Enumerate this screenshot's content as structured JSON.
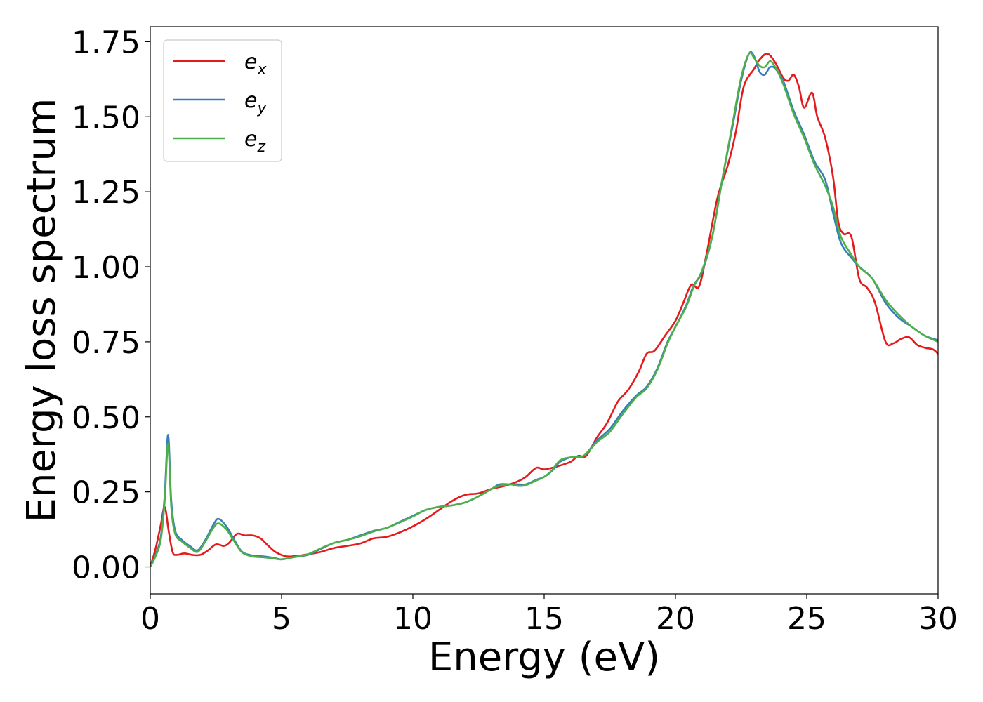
{
  "chart_data": {
    "type": "line",
    "xlabel": "Energy (eV)",
    "ylabel": "Energy loss spectrum",
    "xlim": [
      0,
      30
    ],
    "ylim": [
      -0.09,
      1.8
    ],
    "xticks": [
      0,
      5,
      10,
      15,
      20,
      25,
      30
    ],
    "xtick_labels": [
      "0",
      "5",
      "10",
      "15",
      "20",
      "25",
      "30"
    ],
    "yticks": [
      0,
      0.25,
      0.5,
      0.75,
      1.0,
      1.25,
      1.5,
      1.75
    ],
    "ytick_labels": [
      "0.00",
      "0.25",
      "0.50",
      "0.75",
      "1.00",
      "1.25",
      "1.50",
      "1.75"
    ],
    "grid": false,
    "legend": "top-left",
    "series": [
      {
        "name": "e_x",
        "base": "e",
        "sub": "x",
        "color": "#e41a1c",
        "points": [
          [
            0,
            0
          ],
          [
            0.2,
            0.06
          ],
          [
            0.4,
            0.14
          ],
          [
            0.55,
            0.2
          ],
          [
            0.7,
            0.12
          ],
          [
            0.85,
            0.05
          ],
          [
            1.0,
            0.04
          ],
          [
            1.3,
            0.045
          ],
          [
            1.6,
            0.04
          ],
          [
            1.9,
            0.04
          ],
          [
            2.2,
            0.055
          ],
          [
            2.5,
            0.075
          ],
          [
            2.8,
            0.07
          ],
          [
            3.0,
            0.08
          ],
          [
            3.3,
            0.11
          ],
          [
            3.6,
            0.105
          ],
          [
            3.9,
            0.105
          ],
          [
            4.2,
            0.095
          ],
          [
            4.5,
            0.07
          ],
          [
            4.8,
            0.048
          ],
          [
            5.2,
            0.035
          ],
          [
            5.6,
            0.037
          ],
          [
            6.0,
            0.042
          ],
          [
            6.5,
            0.05
          ],
          [
            7.0,
            0.063
          ],
          [
            7.5,
            0.07
          ],
          [
            8.0,
            0.078
          ],
          [
            8.5,
            0.095
          ],
          [
            9.0,
            0.1
          ],
          [
            9.5,
            0.115
          ],
          [
            10.0,
            0.135
          ],
          [
            10.5,
            0.16
          ],
          [
            11.0,
            0.19
          ],
          [
            11.5,
            0.22
          ],
          [
            12.0,
            0.24
          ],
          [
            12.5,
            0.245
          ],
          [
            13.0,
            0.26
          ],
          [
            13.5,
            0.27
          ],
          [
            14.0,
            0.285
          ],
          [
            14.3,
            0.3
          ],
          [
            14.7,
            0.33
          ],
          [
            15.0,
            0.325
          ],
          [
            15.5,
            0.335
          ],
          [
            16.0,
            0.35
          ],
          [
            16.3,
            0.37
          ],
          [
            16.6,
            0.37
          ],
          [
            17.0,
            0.43
          ],
          [
            17.4,
            0.48
          ],
          [
            17.8,
            0.55
          ],
          [
            18.2,
            0.59
          ],
          [
            18.6,
            0.65
          ],
          [
            18.9,
            0.71
          ],
          [
            19.2,
            0.72
          ],
          [
            19.6,
            0.77
          ],
          [
            20.0,
            0.82
          ],
          [
            20.3,
            0.88
          ],
          [
            20.6,
            0.94
          ],
          [
            20.9,
            0.935
          ],
          [
            21.2,
            1.05
          ],
          [
            21.6,
            1.23
          ],
          [
            22.0,
            1.34
          ],
          [
            22.3,
            1.45
          ],
          [
            22.6,
            1.6
          ],
          [
            23.0,
            1.66
          ],
          [
            23.2,
            1.69
          ],
          [
            23.5,
            1.71
          ],
          [
            23.8,
            1.68
          ],
          [
            24.1,
            1.63
          ],
          [
            24.3,
            1.62
          ],
          [
            24.5,
            1.64
          ],
          [
            24.7,
            1.6
          ],
          [
            24.9,
            1.53
          ],
          [
            25.2,
            1.58
          ],
          [
            25.4,
            1.5
          ],
          [
            25.7,
            1.43
          ],
          [
            26.0,
            1.3
          ],
          [
            26.2,
            1.15
          ],
          [
            26.4,
            1.11
          ],
          [
            26.7,
            1.1
          ],
          [
            27.0,
            0.96
          ],
          [
            27.3,
            0.93
          ],
          [
            27.6,
            0.88
          ],
          [
            28.0,
            0.75
          ],
          [
            28.3,
            0.745
          ],
          [
            28.6,
            0.76
          ],
          [
            28.9,
            0.765
          ],
          [
            29.2,
            0.74
          ],
          [
            29.5,
            0.73
          ],
          [
            29.8,
            0.725
          ],
          [
            30.0,
            0.71
          ]
        ]
      },
      {
        "name": "e_y",
        "base": "e",
        "sub": "y",
        "color": "#377eb8",
        "points": [
          [
            0,
            0
          ],
          [
            0.2,
            0.04
          ],
          [
            0.4,
            0.1
          ],
          [
            0.55,
            0.24
          ],
          [
            0.68,
            0.44
          ],
          [
            0.8,
            0.22
          ],
          [
            0.95,
            0.12
          ],
          [
            1.2,
            0.09
          ],
          [
            1.5,
            0.07
          ],
          [
            1.8,
            0.055
          ],
          [
            2.1,
            0.09
          ],
          [
            2.4,
            0.14
          ],
          [
            2.6,
            0.16
          ],
          [
            2.9,
            0.135
          ],
          [
            3.2,
            0.09
          ],
          [
            3.5,
            0.05
          ],
          [
            3.9,
            0.038
          ],
          [
            4.3,
            0.035
          ],
          [
            4.7,
            0.03
          ],
          [
            5.0,
            0.025
          ],
          [
            5.5,
            0.033
          ],
          [
            6.0,
            0.04
          ],
          [
            6.5,
            0.06
          ],
          [
            7.0,
            0.08
          ],
          [
            7.5,
            0.09
          ],
          [
            8.0,
            0.105
          ],
          [
            8.5,
            0.12
          ],
          [
            9.0,
            0.13
          ],
          [
            9.5,
            0.15
          ],
          [
            10.0,
            0.17
          ],
          [
            10.5,
            0.19
          ],
          [
            11.0,
            0.2
          ],
          [
            11.5,
            0.205
          ],
          [
            12.0,
            0.215
          ],
          [
            12.5,
            0.235
          ],
          [
            13.0,
            0.26
          ],
          [
            13.3,
            0.275
          ],
          [
            13.7,
            0.275
          ],
          [
            14.0,
            0.275
          ],
          [
            14.3,
            0.275
          ],
          [
            14.7,
            0.29
          ],
          [
            15.0,
            0.3
          ],
          [
            15.3,
            0.32
          ],
          [
            15.6,
            0.35
          ],
          [
            16.0,
            0.365
          ],
          [
            16.5,
            0.37
          ],
          [
            17.0,
            0.42
          ],
          [
            17.5,
            0.46
          ],
          [
            18.0,
            0.52
          ],
          [
            18.5,
            0.57
          ],
          [
            18.9,
            0.6
          ],
          [
            19.3,
            0.66
          ],
          [
            19.7,
            0.75
          ],
          [
            20.0,
            0.8
          ],
          [
            20.4,
            0.87
          ],
          [
            20.7,
            0.94
          ],
          [
            21.0,
            0.98
          ],
          [
            21.4,
            1.1
          ],
          [
            21.8,
            1.3
          ],
          [
            22.2,
            1.48
          ],
          [
            22.5,
            1.62
          ],
          [
            22.8,
            1.71
          ],
          [
            23.0,
            1.7
          ],
          [
            23.2,
            1.65
          ],
          [
            23.4,
            1.64
          ],
          [
            23.6,
            1.665
          ],
          [
            23.8,
            1.66
          ],
          [
            24.1,
            1.62
          ],
          [
            24.5,
            1.52
          ],
          [
            24.9,
            1.44
          ],
          [
            25.3,
            1.35
          ],
          [
            25.7,
            1.29
          ],
          [
            26.0,
            1.18
          ],
          [
            26.3,
            1.08
          ],
          [
            26.7,
            1.03
          ],
          [
            27.0,
            1.0
          ],
          [
            27.5,
            0.96
          ],
          [
            28.0,
            0.88
          ],
          [
            28.5,
            0.83
          ],
          [
            29.0,
            0.8
          ],
          [
            29.5,
            0.77
          ],
          [
            30.0,
            0.755
          ]
        ]
      },
      {
        "name": "e_z",
        "base": "e",
        "sub": "z",
        "color": "#4daf4a",
        "points": [
          [
            0,
            0
          ],
          [
            0.2,
            0.035
          ],
          [
            0.4,
            0.09
          ],
          [
            0.55,
            0.22
          ],
          [
            0.68,
            0.41
          ],
          [
            0.8,
            0.2
          ],
          [
            0.95,
            0.11
          ],
          [
            1.2,
            0.085
          ],
          [
            1.5,
            0.065
          ],
          [
            1.8,
            0.05
          ],
          [
            2.1,
            0.085
          ],
          [
            2.4,
            0.13
          ],
          [
            2.6,
            0.145
          ],
          [
            2.9,
            0.125
          ],
          [
            3.2,
            0.085
          ],
          [
            3.5,
            0.048
          ],
          [
            3.9,
            0.035
          ],
          [
            4.3,
            0.032
          ],
          [
            4.7,
            0.028
          ],
          [
            5.0,
            0.025
          ],
          [
            5.5,
            0.033
          ],
          [
            6.0,
            0.042
          ],
          [
            6.5,
            0.062
          ],
          [
            7.0,
            0.08
          ],
          [
            7.5,
            0.09
          ],
          [
            8.0,
            0.102
          ],
          [
            8.5,
            0.118
          ],
          [
            9.0,
            0.13
          ],
          [
            9.5,
            0.148
          ],
          [
            10.0,
            0.168
          ],
          [
            10.5,
            0.19
          ],
          [
            11.0,
            0.2
          ],
          [
            11.5,
            0.205
          ],
          [
            12.0,
            0.215
          ],
          [
            12.5,
            0.235
          ],
          [
            13.0,
            0.26
          ],
          [
            13.3,
            0.27
          ],
          [
            13.7,
            0.275
          ],
          [
            14.0,
            0.27
          ],
          [
            14.3,
            0.272
          ],
          [
            14.7,
            0.288
          ],
          [
            15.0,
            0.3
          ],
          [
            15.3,
            0.322
          ],
          [
            15.6,
            0.355
          ],
          [
            16.0,
            0.365
          ],
          [
            16.5,
            0.37
          ],
          [
            17.0,
            0.415
          ],
          [
            17.5,
            0.45
          ],
          [
            18.0,
            0.51
          ],
          [
            18.5,
            0.565
          ],
          [
            18.9,
            0.595
          ],
          [
            19.3,
            0.655
          ],
          [
            19.7,
            0.745
          ],
          [
            20.0,
            0.8
          ],
          [
            20.4,
            0.865
          ],
          [
            20.7,
            0.935
          ],
          [
            21.0,
            0.985
          ],
          [
            21.4,
            1.1
          ],
          [
            21.8,
            1.3
          ],
          [
            22.2,
            1.49
          ],
          [
            22.5,
            1.63
          ],
          [
            22.8,
            1.71
          ],
          [
            23.0,
            1.695
          ],
          [
            23.2,
            1.67
          ],
          [
            23.4,
            1.665
          ],
          [
            23.6,
            1.685
          ],
          [
            23.8,
            1.665
          ],
          [
            24.1,
            1.61
          ],
          [
            24.5,
            1.51
          ],
          [
            24.9,
            1.43
          ],
          [
            25.3,
            1.34
          ],
          [
            25.7,
            1.27
          ],
          [
            26.0,
            1.2
          ],
          [
            26.3,
            1.1
          ],
          [
            26.7,
            1.04
          ],
          [
            27.0,
            1.0
          ],
          [
            27.5,
            0.96
          ],
          [
            28.0,
            0.89
          ],
          [
            28.5,
            0.84
          ],
          [
            29.0,
            0.8
          ],
          [
            29.5,
            0.77
          ],
          [
            30.0,
            0.75
          ]
        ]
      }
    ]
  }
}
